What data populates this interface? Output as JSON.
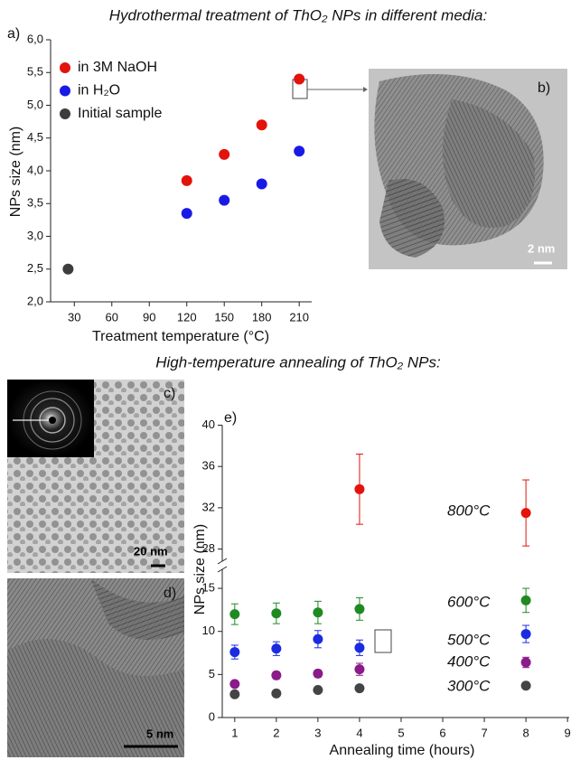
{
  "chart_data": [
    {
      "type": "scatter",
      "title": "Hydrothermal treatment of ThO₂ NPs in different media:",
      "panel_label": "a)",
      "x_label": "Treatment temperature  (°C)",
      "y_label": "NPs size (nm)",
      "xlim": [
        11,
        220
      ],
      "xticks": [
        30,
        60,
        90,
        120,
        150,
        180,
        210
      ],
      "ylim": [
        2,
        6
      ],
      "yticks": [
        {
          "value": 2,
          "label": "2,0"
        },
        {
          "value": 2.5,
          "label": "2,5"
        },
        {
          "value": 3,
          "label": "3,0"
        },
        {
          "value": 3.5,
          "label": "3,5"
        },
        {
          "value": 4,
          "label": "4,0"
        },
        {
          "value": 4.5,
          "label": "4,5"
        },
        {
          "value": 5,
          "label": "5,0"
        },
        {
          "value": 5.5,
          "label": "5,5"
        },
        {
          "value": 6,
          "label": "6,0"
        }
      ],
      "legend": "upper left",
      "series": [
        {
          "name": "in 3M NaOH",
          "color": "#e3120b",
          "x": [
            120,
            150,
            180,
            210
          ],
          "values": [
            3.85,
            4.25,
            4.7,
            5.4
          ]
        },
        {
          "name": "in H₂O",
          "color": "#1a1ae6",
          "x": [
            120,
            150,
            180,
            210
          ],
          "values": [
            3.35,
            3.55,
            3.8,
            4.3
          ]
        },
        {
          "name": "Initial sample",
          "color": "#3d3d3d",
          "x": [
            25
          ],
          "values": [
            2.5
          ]
        }
      ]
    },
    {
      "type": "scatter",
      "title": "High-temperature annealing of ThO₂ NPs:",
      "panel_label": "e)",
      "x_label": "Annealing time (hours)",
      "y_label": "NPs size (nm)",
      "xlim": [
        0.7,
        9.04
      ],
      "xticks": [
        1,
        2,
        3,
        4,
        5,
        6,
        7,
        8,
        9
      ],
      "ylim": [
        0,
        40
      ],
      "ybreak": [
        17,
        27
      ],
      "yticks": [
        0,
        5,
        10,
        15,
        28,
        32,
        36,
        40
      ],
      "series": [
        {
          "name": "800°C",
          "color": "#e3120b",
          "x": [
            4,
            8
          ],
          "values": [
            33.8,
            31.5
          ],
          "errors": [
            3.4,
            3.2
          ]
        },
        {
          "name": "600°C",
          "color": "#1f8a22",
          "x": [
            1,
            2,
            3,
            4,
            8
          ],
          "values": [
            12.0,
            12.1,
            12.2,
            12.6,
            13.6
          ],
          "errors": [
            1.2,
            1.2,
            1.3,
            1.3,
            1.4
          ]
        },
        {
          "name": "500°C",
          "color": "#1a2be0",
          "x": [
            1,
            2,
            3,
            4,
            8
          ],
          "values": [
            7.6,
            8.0,
            9.1,
            8.1,
            9.7
          ],
          "errors": [
            0.8,
            0.8,
            1.0,
            0.9,
            1.0
          ]
        },
        {
          "name": "400°C",
          "color": "#8b1a8b",
          "x": [
            1,
            2,
            3,
            4,
            8
          ],
          "values": [
            3.9,
            4.9,
            5.1,
            5.6,
            6.4
          ],
          "errors": [
            0.3,
            0.4,
            0.4,
            0.7,
            0.6
          ]
        },
        {
          "name": "300°C",
          "color": "#444444",
          "x": [
            1,
            2,
            3,
            4,
            8
          ],
          "values": [
            2.7,
            2.8,
            3.2,
            3.4,
            3.7
          ],
          "errors": [
            0.2,
            0.2,
            0.25,
            0.25,
            0.3
          ]
        }
      ]
    }
  ],
  "images": [
    {
      "label": "b)",
      "scale_bar": "2 nm"
    },
    {
      "label": "c)",
      "scale_bar": "20 nm"
    },
    {
      "label": "d)",
      "scale_bar": "5 nm"
    }
  ]
}
